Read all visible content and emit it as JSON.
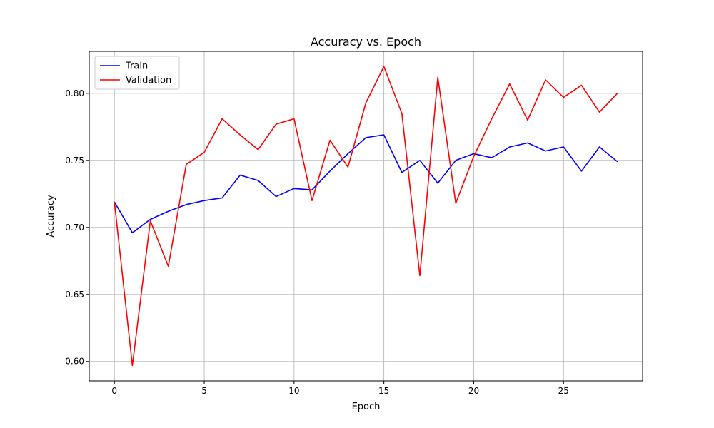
{
  "chart_data": {
    "type": "line",
    "title": "Accuracy vs. Epoch",
    "xlabel": "Epoch",
    "ylabel": "Accuracy",
    "xlim": [
      -1.4,
      29.4
    ],
    "ylim": [
      0.5855,
      0.8313
    ],
    "xticks": [
      0,
      5,
      10,
      15,
      20,
      25
    ],
    "yticks": [
      0.6,
      0.65,
      0.7,
      0.75,
      0.8
    ],
    "grid": true,
    "legend_position": "top-left",
    "x": [
      0,
      1,
      2,
      3,
      4,
      5,
      6,
      7,
      8,
      9,
      10,
      11,
      12,
      13,
      14,
      15,
      16,
      17,
      18,
      19,
      20,
      21,
      22,
      23,
      24,
      25,
      26,
      27,
      28
    ],
    "series": [
      {
        "name": "Train",
        "color": "#0000ff",
        "values": [
          0.719,
          0.696,
          0.706,
          0.712,
          0.717,
          0.72,
          0.722,
          0.739,
          0.735,
          0.723,
          0.729,
          0.728,
          0.742,
          0.755,
          0.767,
          0.769,
          0.741,
          0.75,
          0.733,
          0.75,
          0.755,
          0.752,
          0.76,
          0.763,
          0.757,
          0.76,
          0.742,
          0.76,
          0.749
        ]
      },
      {
        "name": "Validation",
        "color": "#ff0000",
        "values": [
          0.719,
          0.597,
          0.705,
          0.671,
          0.747,
          0.756,
          0.781,
          0.769,
          0.758,
          0.777,
          0.781,
          0.72,
          0.765,
          0.745,
          0.793,
          0.82,
          0.785,
          0.664,
          0.812,
          0.718,
          0.753,
          0.781,
          0.807,
          0.78,
          0.81,
          0.797,
          0.806,
          0.786,
          0.8
        ]
      }
    ]
  }
}
